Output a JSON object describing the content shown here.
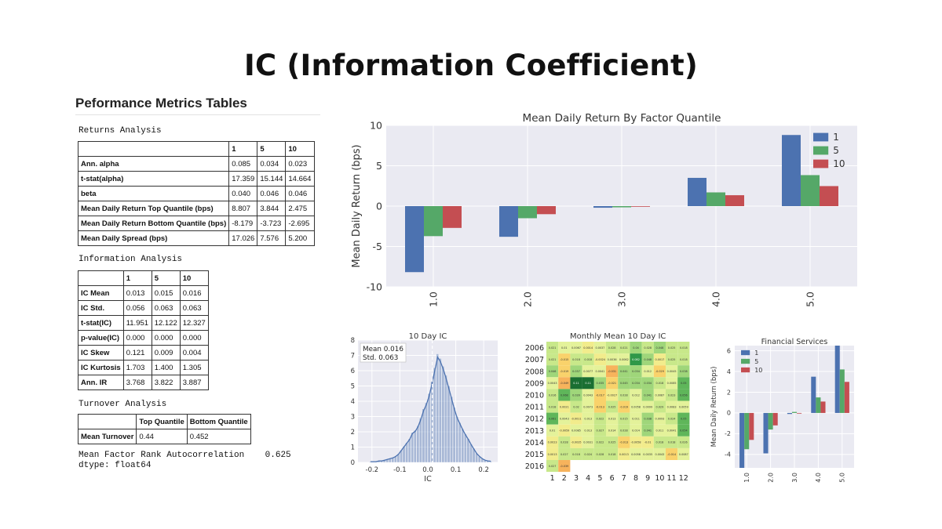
{
  "title": "IC (Information Coefficient)",
  "performance": {
    "title": "Peformance Metrics Tables",
    "returns": {
      "label": "Returns Analysis",
      "headers": [
        "",
        "1",
        "5",
        "10"
      ],
      "rows": [
        [
          "Ann. alpha",
          "0.085",
          "0.034",
          "0.023"
        ],
        [
          "t-stat(alpha)",
          "17.359",
          "15.144",
          "14.664"
        ],
        [
          "beta",
          "0.040",
          "0.046",
          "0.046"
        ],
        [
          "Mean Daily Return Top Quantile (bps)",
          "8.807",
          "3.844",
          "2.475"
        ],
        [
          "Mean Daily Return Bottom Quantile (bps)",
          "-8.179",
          "-3.723",
          "-2.695"
        ],
        [
          "Mean Daily Spread (bps)",
          "17.026",
          "7.576",
          "5.200"
        ]
      ]
    },
    "information": {
      "label": "Information Analysis",
      "headers": [
        "",
        "1",
        "5",
        "10"
      ],
      "rows": [
        [
          "IC Mean",
          "0.013",
          "0.015",
          "0.016"
        ],
        [
          "IC Std.",
          "0.056",
          "0.063",
          "0.063"
        ],
        [
          "t-stat(IC)",
          "11.951",
          "12.122",
          "12.327"
        ],
        [
          "p-value(IC)",
          "0.000",
          "0.000",
          "0.000"
        ],
        [
          "IC Skew",
          "0.121",
          "0.009",
          "0.004"
        ],
        [
          "IC Kurtosis",
          "1.703",
          "1.400",
          "1.305"
        ],
        [
          "Ann. IR",
          "3.768",
          "3.822",
          "3.887"
        ]
      ]
    },
    "turnover": {
      "label": "Turnover Analysis",
      "headers": [
        "",
        "Top Quantile",
        "Bottom Quantile"
      ],
      "rows": [
        [
          "Mean Turnover",
          "0.44",
          "0.452"
        ]
      ]
    },
    "footer": {
      "line1": "Mean Factor Rank Autocorrelation    0.625",
      "line2": "dtype: float64"
    }
  },
  "colors": {
    "s1": "#4c72b0",
    "s5": "#55a868",
    "s10": "#c44e52",
    "panel": "#eaeaf2",
    "grid": "#ffffff"
  },
  "chart_data": [
    {
      "id": "mean-return",
      "type": "bar",
      "title": "Mean Daily Return By Factor Quantile",
      "xlabel": "",
      "ylabel": "Mean Daily Return (bps)",
      "categories": [
        "1.0",
        "2.0",
        "3.0",
        "4.0",
        "5.0"
      ],
      "series": [
        {
          "name": "1",
          "values": [
            -8.18,
            -3.8,
            -0.2,
            3.5,
            8.81
          ]
        },
        {
          "name": "5",
          "values": [
            -3.72,
            -1.5,
            -0.15,
            1.7,
            3.84
          ]
        },
        {
          "name": "10",
          "values": [
            -2.7,
            -1.0,
            -0.05,
            1.35,
            2.48
          ]
        }
      ],
      "ylim": [
        -10,
        10
      ],
      "yticks": [
        10,
        5,
        0,
        -5,
        -10
      ],
      "legend": "top-right"
    },
    {
      "id": "ic-hist",
      "type": "histogram",
      "title": "10 Day IC",
      "xlabel": "IC",
      "xticks": [
        "-0.2",
        "-0.1",
        "0.0",
        "0.1",
        "0.2"
      ],
      "yticks": [
        "0",
        "1",
        "2",
        "3",
        "4",
        "5",
        "6",
        "7",
        "8"
      ],
      "xlim": [
        -0.25,
        0.25
      ],
      "ylim": [
        0,
        8
      ],
      "bin_width": 0.01,
      "bins_start": -0.21,
      "density": [
        0.05,
        0.05,
        0.05,
        0.1,
        0.1,
        0.15,
        0.2,
        0.25,
        0.3,
        0.4,
        0.55,
        0.8,
        1.05,
        1.3,
        1.55,
        1.95,
        2.1,
        2.4,
        2.9,
        3.5,
        3.9,
        4.5,
        5.3,
        6.2,
        7.1,
        6.8,
        6.3,
        5.7,
        5.0,
        4.3,
        3.6,
        3.0,
        2.6,
        2.2,
        1.85,
        1.55,
        1.2,
        0.9,
        0.6,
        0.4,
        0.25,
        0.15,
        0.1,
        0.08
      ],
      "mean": 0.016,
      "annotation_mean": "Mean 0.016",
      "annotation_std": "Std.  0.063"
    },
    {
      "id": "monthly-ic",
      "type": "heatmap",
      "title": "Monthly Mean 10 Day IC",
      "years": [
        "2006",
        "2007",
        "2008",
        "2009",
        "2010",
        "2011",
        "2012",
        "2013",
        "2014",
        "2015",
        "2016"
      ],
      "months": [
        "1",
        "2",
        "3",
        "4",
        "5",
        "6",
        "7",
        "8",
        "9",
        "10",
        "11",
        "12"
      ],
      "values": [
        [
          0.021,
          0.01,
          0.0067,
          0.0014,
          0.0037,
          0.028,
          0.021,
          0.04,
          0.028,
          0.048,
          0.025,
          0.018
        ],
        [
          0.021,
          -0.015,
          0.018,
          0.018,
          -0.0024,
          0.0036,
          0.0062,
          0.082,
          0.048,
          0.0017,
          0.025,
          0.018
        ],
        [
          0.046,
          -0.019,
          0.037,
          0.0077,
          0.0041,
          -0.031,
          0.041,
          0.034,
          0.012,
          -0.029,
          0.0045,
          0.038
        ],
        [
          0.0043,
          -0.049,
          0.11,
          0.11,
          0.035,
          -0.021,
          0.045,
          0.034,
          0.034,
          0.018,
          0.0085,
          0.05
        ],
        [
          0.016,
          0.068,
          0.039,
          0.0043,
          -0.017,
          -0.0027,
          0.028,
          0.012,
          0.041,
          0.0087,
          0.023,
          0.056
        ],
        [
          0.018,
          0.0021,
          0.02,
          0.0073,
          -0.013,
          0.025,
          -0.019,
          0.0058,
          0.0099,
          0.029,
          0.0083,
          0.0059
        ],
        [
          0.061,
          0.0043,
          -0.0011,
          0.013,
          0.022,
          0.013,
          0.015,
          0.011,
          0.038,
          0.0093,
          0.024,
          0.05
        ],
        [
          0.01,
          -0.0059,
          0.0085,
          0.013,
          0.027,
          0.014,
          0.028,
          0.014,
          0.041,
          0.011,
          0.0041,
          0.054
        ],
        [
          0.0023,
          0.028,
          -0.0035,
          0.0031,
          0.022,
          0.025,
          -0.013,
          -0.0058,
          -0.01,
          0.018,
          0.018,
          0.026
        ],
        [
          0.0013,
          0.027,
          0.018,
          0.024,
          0.028,
          0.018,
          0.0013,
          0.0058,
          0.0035,
          0.0043,
          -0.014,
          0.0087
        ],
        [
          0.027,
          -0.039,
          null,
          null,
          null,
          null,
          null,
          null,
          null,
          null,
          null,
          null
        ]
      ],
      "display": [
        [
          "0.021",
          "0.01",
          "0.0067",
          "0.0014",
          "0.0037",
          "0.028",
          "0.021",
          "0.04",
          "0.028",
          "0.048",
          "0.025",
          "0.018"
        ],
        [
          "0.021",
          "-0.015",
          "0.018",
          "0.018",
          "-0.0024",
          "0.0036",
          "0.0062",
          "0.082",
          "0.048",
          "0.0017",
          "0.025",
          "0.018"
        ],
        [
          "0.046",
          "-0.019",
          "0.037",
          "0.0077",
          "0.0041",
          "-0.031",
          "0.041",
          "0.034",
          "0.012",
          "-0.029",
          "0.0045",
          "0.038"
        ],
        [
          "0.0043",
          "-0.049",
          "0.11",
          "0.11",
          "0.035",
          "-0.021",
          "0.045",
          "0.034",
          "0.034",
          "0.018",
          "0.0085",
          "0.05"
        ],
        [
          "0.016",
          "0.068",
          "0.039",
          "0.0043",
          "-0.017",
          "-0.0027",
          "0.028",
          "0.012",
          "0.041",
          "0.0087",
          "0.023",
          "0.056"
        ],
        [
          "0.018",
          "0.0021",
          "0.02",
          "0.0073",
          "-0.013",
          "0.025",
          "-0.019",
          "0.0058",
          "0.0099",
          "0.029",
          "0.0083",
          "0.0059"
        ],
        [
          "0.061",
          "0.0043",
          "-0.0011",
          "0.013",
          "0.022",
          "0.013",
          "0.015",
          "0.011",
          "0.038",
          "0.0093",
          "0.024",
          "0.05"
        ],
        [
          "0.01",
          "-0.0059",
          "0.0085",
          "0.013",
          "0.027",
          "0.014",
          "0.028",
          "0.014",
          "0.041",
          "0.011",
          "0.0041",
          "0.054"
        ],
        [
          "0.0023",
          "0.028",
          "-0.0035",
          "0.0031",
          "0.022",
          "0.025",
          "-0.013",
          "-0.0058",
          "-0.01",
          "0.018",
          "0.018",
          "0.026"
        ],
        [
          "0.0013",
          "0.027",
          "0.018",
          "0.024",
          "0.028",
          "0.018",
          "0.0013",
          "0.0058",
          "0.0035",
          "0.0043",
          "-0.014",
          "0.0087"
        ],
        [
          "0.027",
          "-0.039",
          "",
          "",
          "",
          "",
          "",
          "",
          "",
          "",
          "",
          ""
        ]
      ]
    },
    {
      "id": "financial-services",
      "type": "bar",
      "title": "Financial Services",
      "xlabel": "",
      "ylabel": "Mean Daily Return (bps)",
      "categories": [
        "1.0",
        "2.0",
        "3.0",
        "4.0",
        "5.0"
      ],
      "series": [
        {
          "name": "1",
          "values": [
            -5.3,
            -3.9,
            -0.1,
            3.5,
            6.5
          ]
        },
        {
          "name": "5",
          "values": [
            -3.5,
            -1.6,
            0.1,
            1.5,
            4.2
          ]
        },
        {
          "name": "10",
          "values": [
            -2.6,
            -1.2,
            0.0,
            1.1,
            3.0
          ]
        }
      ],
      "ylim": [
        -5.3,
        6.5
      ],
      "yticks": [
        6,
        4,
        2,
        0,
        -2,
        -4
      ],
      "legend": "top-left"
    }
  ]
}
